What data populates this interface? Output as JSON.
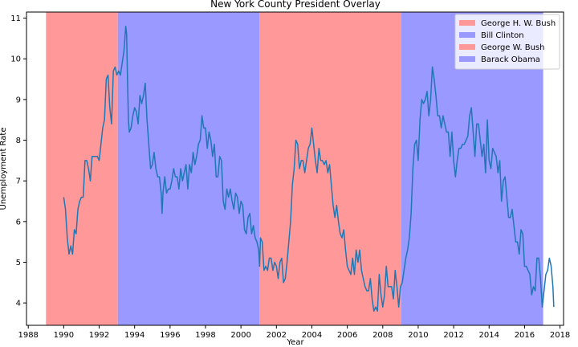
{
  "chart_data": {
    "type": "line",
    "title": "New York County President Overlay",
    "xlabel": "Year",
    "ylabel": "Unemployment Rate",
    "xlim": [
      1987.9,
      2018.2
    ],
    "ylim": [
      3.45,
      11.15
    ],
    "xticks": [
      1988,
      1990,
      1992,
      1994,
      1996,
      1998,
      2000,
      2002,
      2004,
      2006,
      2008,
      2010,
      2012,
      2014,
      2016,
      2018
    ],
    "yticks": [
      4,
      5,
      6,
      7,
      8,
      9,
      10,
      11
    ],
    "grid": false,
    "legend_position": "top-right",
    "line_color": "#1f77b4",
    "presidencies": [
      {
        "name": "George H. W. Bush",
        "start": 1989.0,
        "end": 1993.05,
        "color": "#ff9999"
      },
      {
        "name": "Bill Clinton",
        "start": 1993.05,
        "end": 2001.05,
        "color": "#9999ff"
      },
      {
        "name": "George W. Bush",
        "start": 2001.05,
        "end": 2009.05,
        "color": "#ff9999"
      },
      {
        "name": "Barack Obama",
        "start": 2009.05,
        "end": 2017.05,
        "color": "#9999ff"
      }
    ],
    "series": [
      {
        "points": [
          [
            1990.0,
            6.6
          ],
          [
            1990.1,
            6.3
          ],
          [
            1990.2,
            5.6
          ],
          [
            1990.3,
            5.2
          ],
          [
            1990.4,
            5.4
          ],
          [
            1990.5,
            5.2
          ],
          [
            1990.6,
            5.8
          ],
          [
            1990.7,
            5.7
          ],
          [
            1990.8,
            6.3
          ],
          [
            1990.9,
            6.5
          ],
          [
            1991.0,
            6.6
          ],
          [
            1991.1,
            6.6
          ],
          [
            1991.2,
            7.5
          ],
          [
            1991.3,
            7.5
          ],
          [
            1991.4,
            7.3
          ],
          [
            1991.5,
            7.0
          ],
          [
            1991.6,
            7.6
          ],
          [
            1991.8,
            7.6
          ],
          [
            1991.9,
            7.6
          ],
          [
            1992.0,
            7.5
          ],
          [
            1992.1,
            7.9
          ],
          [
            1992.2,
            8.3
          ],
          [
            1992.3,
            8.5
          ],
          [
            1992.4,
            9.5
          ],
          [
            1992.5,
            9.6
          ],
          [
            1992.6,
            8.8
          ],
          [
            1992.7,
            8.4
          ],
          [
            1992.8,
            9.7
          ],
          [
            1992.9,
            9.8
          ],
          [
            1993.0,
            9.6
          ],
          [
            1993.1,
            9.7
          ],
          [
            1993.2,
            9.6
          ],
          [
            1993.3,
            9.9
          ],
          [
            1993.4,
            10.2
          ],
          [
            1993.5,
            10.8
          ],
          [
            1993.55,
            10.6
          ],
          [
            1993.6,
            9.5
          ],
          [
            1993.65,
            8.5
          ],
          [
            1993.7,
            8.2
          ],
          [
            1993.8,
            8.3
          ],
          [
            1993.9,
            8.6
          ],
          [
            1994.0,
            8.8
          ],
          [
            1994.1,
            8.7
          ],
          [
            1994.2,
            8.4
          ],
          [
            1994.3,
            9.1
          ],
          [
            1994.4,
            8.9
          ],
          [
            1994.5,
            9.1
          ],
          [
            1994.6,
            9.4
          ],
          [
            1994.7,
            8.5
          ],
          [
            1994.8,
            7.9
          ],
          [
            1994.9,
            7.3
          ],
          [
            1995.0,
            7.4
          ],
          [
            1995.1,
            7.7
          ],
          [
            1995.2,
            7.3
          ],
          [
            1995.3,
            7.1
          ],
          [
            1995.4,
            7.1
          ],
          [
            1995.5,
            6.7
          ],
          [
            1995.55,
            6.2
          ],
          [
            1995.6,
            6.7
          ],
          [
            1995.7,
            7.1
          ],
          [
            1995.8,
            6.7
          ],
          [
            1995.9,
            6.8
          ],
          [
            1996.0,
            6.8
          ],
          [
            1996.1,
            7.0
          ],
          [
            1996.2,
            7.3
          ],
          [
            1996.3,
            7.1
          ],
          [
            1996.4,
            7.1
          ],
          [
            1996.5,
            6.8
          ],
          [
            1996.6,
            7.3
          ],
          [
            1996.7,
            7.0
          ],
          [
            1996.8,
            7.2
          ],
          [
            1996.9,
            7.4
          ],
          [
            1997.0,
            6.8
          ],
          [
            1997.1,
            7.4
          ],
          [
            1997.2,
            7.2
          ],
          [
            1997.3,
            7.7
          ],
          [
            1997.4,
            7.4
          ],
          [
            1997.5,
            7.6
          ],
          [
            1997.6,
            7.9
          ],
          [
            1997.7,
            8.0
          ],
          [
            1997.8,
            8.6
          ],
          [
            1997.9,
            8.3
          ],
          [
            1998.0,
            8.3
          ],
          [
            1998.1,
            7.8
          ],
          [
            1998.2,
            8.2
          ],
          [
            1998.3,
            8.0
          ],
          [
            1998.4,
            7.6
          ],
          [
            1998.5,
            7.9
          ],
          [
            1998.6,
            7.1
          ],
          [
            1998.7,
            7.1
          ],
          [
            1998.8,
            7.6
          ],
          [
            1998.9,
            7.5
          ],
          [
            1999.0,
            6.5
          ],
          [
            1999.1,
            6.3
          ],
          [
            1999.2,
            6.8
          ],
          [
            1999.3,
            6.6
          ],
          [
            1999.4,
            6.8
          ],
          [
            1999.5,
            6.5
          ],
          [
            1999.6,
            6.3
          ],
          [
            1999.7,
            6.7
          ],
          [
            1999.8,
            6.6
          ],
          [
            1999.9,
            6.2
          ],
          [
            2000.0,
            6.5
          ],
          [
            2000.1,
            6.4
          ],
          [
            2000.2,
            5.8
          ],
          [
            2000.3,
            5.7
          ],
          [
            2000.4,
            6.1
          ],
          [
            2000.5,
            6.2
          ],
          [
            2000.6,
            5.7
          ],
          [
            2000.7,
            5.9
          ],
          [
            2000.8,
            5.6
          ],
          [
            2000.9,
            5.5
          ],
          [
            2001.0,
            5.3
          ],
          [
            2001.05,
            4.9
          ],
          [
            2001.1,
            5.6
          ],
          [
            2001.2,
            5.5
          ],
          [
            2001.3,
            4.8
          ],
          [
            2001.4,
            4.9
          ],
          [
            2001.5,
            4.8
          ],
          [
            2001.6,
            5.1
          ],
          [
            2001.7,
            5.1
          ],
          [
            2001.8,
            4.8
          ],
          [
            2001.9,
            5.0
          ],
          [
            2002.0,
            4.9
          ],
          [
            2002.1,
            4.6
          ],
          [
            2002.2,
            5.0
          ],
          [
            2002.3,
            5.1
          ],
          [
            2002.4,
            4.5
          ],
          [
            2002.5,
            4.6
          ],
          [
            2002.6,
            5.0
          ],
          [
            2002.7,
            5.5
          ],
          [
            2002.8,
            6.0
          ],
          [
            2002.9,
            6.9
          ],
          [
            2003.0,
            7.3
          ],
          [
            2003.1,
            8.0
          ],
          [
            2003.2,
            7.9
          ],
          [
            2003.3,
            7.3
          ],
          [
            2003.4,
            7.5
          ],
          [
            2003.5,
            7.5
          ],
          [
            2003.6,
            7.2
          ],
          [
            2003.7,
            7.5
          ],
          [
            2003.8,
            7.8
          ],
          [
            2003.9,
            7.9
          ],
          [
            2004.0,
            8.3
          ],
          [
            2004.1,
            7.9
          ],
          [
            2004.2,
            7.5
          ],
          [
            2004.3,
            7.2
          ],
          [
            2004.4,
            7.8
          ],
          [
            2004.5,
            7.5
          ],
          [
            2004.6,
            7.5
          ],
          [
            2004.7,
            7.4
          ],
          [
            2004.8,
            7.5
          ],
          [
            2004.9,
            7.2
          ],
          [
            2005.0,
            7.4
          ],
          [
            2005.1,
            6.9
          ],
          [
            2005.2,
            6.4
          ],
          [
            2005.3,
            6.1
          ],
          [
            2005.4,
            6.4
          ],
          [
            2005.5,
            6.0
          ],
          [
            2005.6,
            5.7
          ],
          [
            2005.7,
            5.6
          ],
          [
            2005.8,
            5.8
          ],
          [
            2005.9,
            5.3
          ],
          [
            2006.0,
            4.9
          ],
          [
            2006.1,
            4.8
          ],
          [
            2006.2,
            4.7
          ],
          [
            2006.3,
            5.1
          ],
          [
            2006.4,
            4.7
          ],
          [
            2006.5,
            5.3
          ],
          [
            2006.6,
            5.0
          ],
          [
            2006.7,
            5.3
          ],
          [
            2006.8,
            4.8
          ],
          [
            2006.9,
            4.6
          ],
          [
            2007.0,
            4.4
          ],
          [
            2007.1,
            4.3
          ],
          [
            2007.2,
            4.3
          ],
          [
            2007.3,
            4.6
          ],
          [
            2007.4,
            4.1
          ],
          [
            2007.5,
            3.8
          ],
          [
            2007.6,
            3.9
          ],
          [
            2007.7,
            3.8
          ],
          [
            2007.8,
            4.7
          ],
          [
            2007.9,
            4.2
          ],
          [
            2008.0,
            3.9
          ],
          [
            2008.1,
            4.2
          ],
          [
            2008.2,
            4.9
          ],
          [
            2008.3,
            4.4
          ],
          [
            2008.4,
            4.4
          ],
          [
            2008.5,
            4.4
          ],
          [
            2008.6,
            4.1
          ],
          [
            2008.7,
            4.8
          ],
          [
            2008.8,
            4.4
          ],
          [
            2008.9,
            3.9
          ],
          [
            2009.0,
            4.4
          ],
          [
            2009.1,
            4.5
          ],
          [
            2009.2,
            4.8
          ],
          [
            2009.3,
            5.1
          ],
          [
            2009.4,
            5.3
          ],
          [
            2009.5,
            5.6
          ],
          [
            2009.6,
            6.2
          ],
          [
            2009.7,
            7.3
          ],
          [
            2009.8,
            7.9
          ],
          [
            2009.9,
            8.0
          ],
          [
            2010.0,
            7.5
          ],
          [
            2010.1,
            8.5
          ],
          [
            2010.2,
            9.0
          ],
          [
            2010.3,
            8.9
          ],
          [
            2010.4,
            9.0
          ],
          [
            2010.5,
            9.2
          ],
          [
            2010.6,
            8.6
          ],
          [
            2010.7,
            9.0
          ],
          [
            2010.8,
            9.8
          ],
          [
            2010.9,
            9.5
          ],
          [
            2011.0,
            9.1
          ],
          [
            2011.1,
            8.6
          ],
          [
            2011.2,
            8.6
          ],
          [
            2011.3,
            8.3
          ],
          [
            2011.4,
            8.6
          ],
          [
            2011.5,
            8.4
          ],
          [
            2011.6,
            8.2
          ],
          [
            2011.7,
            8.2
          ],
          [
            2011.8,
            7.6
          ],
          [
            2011.9,
            8.2
          ],
          [
            2012.0,
            7.5
          ],
          [
            2012.1,
            7.1
          ],
          [
            2012.2,
            7.5
          ],
          [
            2012.3,
            7.8
          ],
          [
            2012.4,
            7.8
          ],
          [
            2012.5,
            7.9
          ],
          [
            2012.6,
            7.9
          ],
          [
            2012.7,
            8.0
          ],
          [
            2012.8,
            8.1
          ],
          [
            2012.9,
            8.6
          ],
          [
            2013.0,
            8.8
          ],
          [
            2013.1,
            8.2
          ],
          [
            2013.2,
            7.6
          ],
          [
            2013.3,
            8.4
          ],
          [
            2013.4,
            8.4
          ],
          [
            2013.5,
            8.0
          ],
          [
            2013.6,
            7.6
          ],
          [
            2013.7,
            7.9
          ],
          [
            2013.8,
            7.2
          ],
          [
            2013.9,
            8.5
          ],
          [
            2014.0,
            7.5
          ],
          [
            2014.1,
            7.3
          ],
          [
            2014.2,
            7.8
          ],
          [
            2014.3,
            7.7
          ],
          [
            2014.4,
            7.6
          ],
          [
            2014.5,
            7.2
          ],
          [
            2014.6,
            7.5
          ],
          [
            2014.7,
            6.5
          ],
          [
            2014.8,
            7.0
          ],
          [
            2014.9,
            7.1
          ],
          [
            2015.0,
            6.6
          ],
          [
            2015.1,
            6.1
          ],
          [
            2015.2,
            6.1
          ],
          [
            2015.3,
            6.3
          ],
          [
            2015.4,
            5.9
          ],
          [
            2015.5,
            5.5
          ],
          [
            2015.6,
            5.5
          ],
          [
            2015.7,
            5.2
          ],
          [
            2015.8,
            5.8
          ],
          [
            2015.9,
            5.7
          ],
          [
            2016.0,
            4.9
          ],
          [
            2016.1,
            4.9
          ],
          [
            2016.2,
            4.8
          ],
          [
            2016.3,
            4.7
          ],
          [
            2016.4,
            4.2
          ],
          [
            2016.5,
            4.4
          ],
          [
            2016.6,
            4.3
          ],
          [
            2016.7,
            5.1
          ],
          [
            2016.8,
            5.1
          ],
          [
            2016.9,
            4.6
          ],
          [
            2017.0,
            3.9
          ],
          [
            2017.1,
            4.3
          ],
          [
            2017.2,
            4.7
          ],
          [
            2017.3,
            4.8
          ],
          [
            2017.4,
            5.1
          ],
          [
            2017.5,
            4.9
          ],
          [
            2017.6,
            4.4
          ],
          [
            2017.65,
            3.9
          ]
        ]
      }
    ]
  }
}
